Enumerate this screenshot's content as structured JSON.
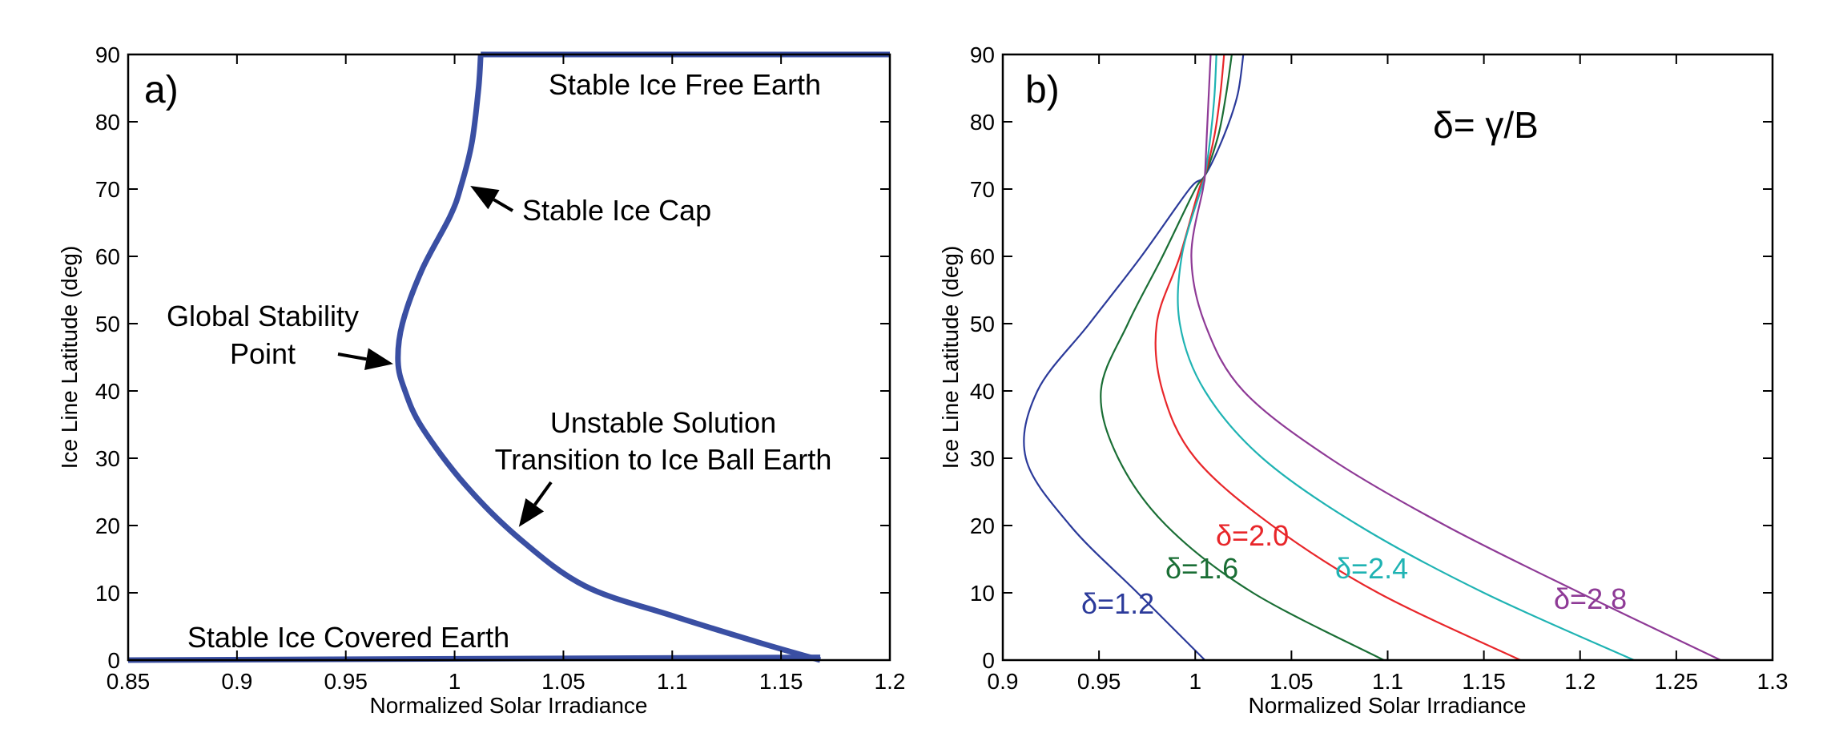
{
  "chart_data": [
    {
      "id": "a",
      "type": "line",
      "panel_label": "a)",
      "xlabel": "Normalized Solar Irradiance",
      "ylabel": "Ice Line Latitude (deg)",
      "xlim": [
        0.85,
        1.2
      ],
      "ylim": [
        0,
        90
      ],
      "xticks": [
        "0.85",
        "0.9",
        "0.95",
        "1",
        "1.05",
        "1.1",
        "1.15",
        "1.2"
      ],
      "yticks": [
        "0",
        "10",
        "20",
        "30",
        "40",
        "50",
        "60",
        "70",
        "80",
        "90"
      ],
      "grid": false,
      "color": "#3a4fa3",
      "series": [
        {
          "points": [
            [
              1.168,
              0
            ],
            [
              1.14,
              2.6
            ],
            [
              1.1,
              6.6
            ],
            [
              1.06,
              11.0
            ],
            [
              1.03,
              18.0
            ],
            [
              1.005,
              26.0
            ],
            [
              0.985,
              34.6
            ],
            [
              0.977,
              40.2
            ],
            [
              0.974,
              44.4
            ],
            [
              0.976,
              50.0
            ],
            [
              0.985,
              58.0
            ],
            [
              0.998,
              66.0
            ],
            [
              1.003,
              70.5
            ],
            [
              1.008,
              77.0
            ],
            [
              1.011,
              85.0
            ],
            [
              1.012,
              90.0
            ]
          ]
        },
        {
          "points": [
            [
              0.85,
              0.0
            ],
            [
              1.168,
              0.4
            ]
          ]
        },
        {
          "points": [
            [
              1.012,
              90.0
            ],
            [
              1.2,
              90.0
            ]
          ]
        }
      ],
      "annotations": [
        {
          "name": "stable-ice-free-earth",
          "text": "Stable Ice Free Earth"
        },
        {
          "name": "stable-ice-cap",
          "text": "Stable Ice Cap"
        },
        {
          "name": "global-stability-point-line1",
          "text": "Global Stability"
        },
        {
          "name": "global-stability-point-line2",
          "text": "Point"
        },
        {
          "name": "unstable-solution-line1",
          "text": "Unstable Solution"
        },
        {
          "name": "unstable-solution-line2",
          "text": "Transition to Ice Ball Earth"
        },
        {
          "name": "stable-ice-covered-earth",
          "text": "Stable Ice Covered Earth"
        }
      ]
    },
    {
      "id": "b",
      "type": "line",
      "panel_label": "b)",
      "title": "δ= γ/B",
      "xlabel": "Normalized Solar Irradiance",
      "ylabel": "Ice Line Latitude (deg)",
      "xlim": [
        0.9,
        1.3
      ],
      "ylim": [
        0,
        90
      ],
      "xticks": [
        "0.9",
        "0.95",
        "1",
        "1.05",
        "1.1",
        "1.15",
        "1.2",
        "1.25",
        "1.3"
      ],
      "yticks": [
        "0",
        "10",
        "20",
        "30",
        "40",
        "50",
        "60",
        "70",
        "80",
        "90"
      ],
      "grid": false,
      "series": [
        {
          "name": "δ=1.2",
          "color": "#2b3a9a",
          "points": [
            [
              1.005,
              0
            ],
            [
              0.97,
              10
            ],
            [
              0.935,
              20
            ],
            [
              0.912,
              30
            ],
            [
              0.918,
              40
            ],
            [
              0.945,
              50
            ],
            [
              0.972,
              60
            ],
            [
              0.997,
              70
            ],
            [
              1.005,
              72
            ],
            [
              1.015,
              78
            ],
            [
              1.022,
              84
            ],
            [
              1.025,
              90
            ]
          ]
        },
        {
          "name": "δ=1.6",
          "color": "#1a6e35",
          "points": [
            [
              1.098,
              0
            ],
            [
              1.03,
              10
            ],
            [
              0.985,
              20
            ],
            [
              0.96,
              30
            ],
            [
              0.951,
              40
            ],
            [
              0.965,
              50
            ],
            [
              0.983,
              60
            ],
            [
              1.0,
              70
            ],
            [
              1.005,
              72
            ],
            [
              1.012,
              78
            ],
            [
              1.016,
              84
            ],
            [
              1.019,
              90
            ]
          ]
        },
        {
          "name": "δ=2.0",
          "color": "#e8262a",
          "points": [
            [
              1.169,
              0
            ],
            [
              1.095,
              10
            ],
            [
              1.04,
              20
            ],
            [
              1.0,
              30
            ],
            [
              0.983,
              40
            ],
            [
              0.98,
              50
            ],
            [
              0.992,
              60
            ],
            [
              1.002,
              70
            ],
            [
              1.005,
              72
            ],
            [
              1.01,
              78
            ],
            [
              1.013,
              84
            ],
            [
              1.015,
              90
            ]
          ]
        },
        {
          "name": "δ=2.4",
          "color": "#1fb3b3",
          "points": [
            [
              1.228,
              0
            ],
            [
              1.15,
              10
            ],
            [
              1.085,
              20
            ],
            [
              1.035,
              30
            ],
            [
              1.005,
              40
            ],
            [
              0.992,
              50
            ],
            [
              0.993,
              60
            ],
            [
              1.003,
              70
            ],
            [
              1.005,
              72
            ],
            [
              1.008,
              78
            ],
            [
              1.01,
              84
            ],
            [
              1.011,
              90
            ]
          ]
        },
        {
          "name": "δ=2.8",
          "color": "#8e3a96",
          "points": [
            [
              1.273,
              0
            ],
            [
              1.2,
              10
            ],
            [
              1.13,
              20
            ],
            [
              1.07,
              30
            ],
            [
              1.025,
              40
            ],
            [
              1.005,
              50
            ],
            [
              0.998,
              60
            ],
            [
              1.004,
              70
            ],
            [
              1.005,
              72
            ],
            [
              1.006,
              78
            ],
            [
              1.007,
              84
            ],
            [
              1.008,
              90
            ]
          ]
        }
      ],
      "series_labels": [
        {
          "text": "δ=1.2",
          "color": "#2b3a9a"
        },
        {
          "text": "δ=1.6",
          "color": "#1a6e35"
        },
        {
          "text": "δ=2.0",
          "color": "#e8262a"
        },
        {
          "text": "δ=2.4",
          "color": "#1fb3b3"
        },
        {
          "text": "δ=2.8",
          "color": "#8e3a96"
        }
      ]
    }
  ]
}
